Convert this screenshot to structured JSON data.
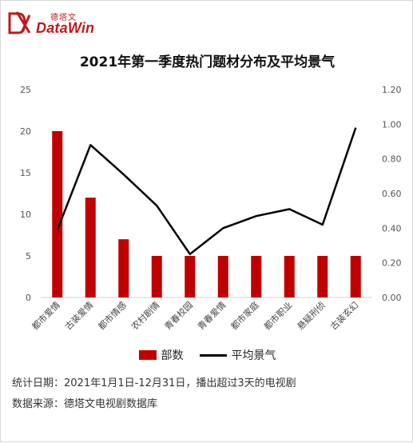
{
  "brand": {
    "logo_cn": "德塔文",
    "logo_en": "DataWin"
  },
  "colors": {
    "bar": "#c00000",
    "line": "#000000",
    "accent": "#c0191b"
  },
  "chart_data": {
    "type": "bar+line",
    "title": "2021年第一季度热门题材分布及平均景气",
    "categories": [
      "都市爱情",
      "古装爱情",
      "都市情感",
      "农村剧情",
      "青春校园",
      "青春爱情",
      "都市家庭",
      "都市职业",
      "悬疑刑侦",
      "古装玄幻"
    ],
    "series": [
      {
        "name": "部数",
        "type": "bar",
        "axis": "left",
        "values": [
          20,
          12,
          7,
          5,
          5,
          5,
          5,
          5,
          5,
          5
        ]
      },
      {
        "name": "平均景气",
        "type": "line",
        "axis": "right",
        "values": [
          0.39,
          0.88,
          0.71,
          0.53,
          0.25,
          0.4,
          0.47,
          0.51,
          0.42,
          0.98
        ]
      }
    ],
    "y_left": {
      "min": 0,
      "max": 25,
      "ticks": [
        "0",
        "5",
        "10",
        "15",
        "20",
        "25"
      ]
    },
    "y_right": {
      "min": 0,
      "max": 1.2,
      "ticks": [
        "0.00",
        "0.20",
        "0.40",
        "0.60",
        "0.80",
        "1.00",
        "1.20"
      ]
    },
    "grid": false,
    "legend_position": "bottom"
  },
  "notes": {
    "stat_date": "统计日期：2021年1月1日-12月31日，播出超过3天的电视剧",
    "source": "数据来源：德塔文电视剧数据库"
  }
}
